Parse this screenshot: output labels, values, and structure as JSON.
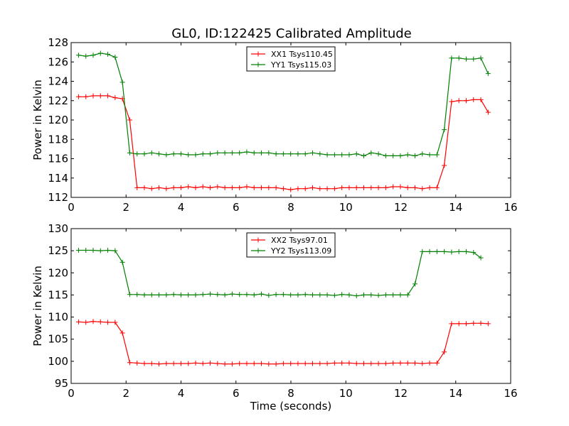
{
  "figure": {
    "title": "GL0, ID:122425 Calibrated Amplitude"
  },
  "chart_data": [
    {
      "type": "line",
      "title": "GL0, ID:122425 Calibrated Amplitude",
      "xlabel": "",
      "ylabel": "Power in Kelvin",
      "xlim": [
        0,
        16
      ],
      "ylim": [
        112,
        128
      ],
      "xticks": [
        0,
        2,
        4,
        6,
        8,
        10,
        12,
        14,
        16
      ],
      "yticks": [
        112,
        114,
        116,
        118,
        120,
        122,
        124,
        126,
        128
      ],
      "grid": false,
      "legend_position": "top-center",
      "x": [
        0.27,
        0.48,
        0.69,
        0.9,
        1.11,
        1.32,
        1.53,
        1.74,
        1.95,
        2.16,
        2.37,
        2.58,
        2.79,
        3.0,
        3.21,
        3.42,
        3.63,
        3.84,
        4.05,
        4.26,
        4.47,
        4.68,
        4.89,
        5.1,
        5.31,
        5.52,
        5.73,
        5.94,
        6.15,
        6.36,
        6.57,
        6.78,
        6.99,
        7.2,
        7.41,
        7.62,
        7.83,
        8.04,
        8.25,
        8.46,
        8.67,
        8.88,
        9.09,
        9.3,
        9.51,
        9.72,
        9.93,
        10.14,
        10.35,
        10.56,
        10.77,
        10.98,
        11.19,
        11.4,
        11.61,
        11.82,
        12.03,
        12.24,
        12.45,
        12.66,
        12.87,
        13.08,
        13.29,
        13.5,
        13.71,
        13.92,
        14.13,
        14.34,
        14.55,
        14.76,
        14.97,
        15.18
      ],
      "series": [
        {
          "name": "XX1 Tsys110.45",
          "color": "#ff0000",
          "values": [
            122.4,
            122.4,
            122.5,
            122.5,
            122.5,
            122.3,
            122.2,
            120.0,
            113.0,
            113.0,
            112.9,
            113.0,
            112.9,
            113.0,
            113.0,
            113.1,
            113.0,
            113.1,
            113.0,
            113.1,
            113.0,
            113.0,
            113.0,
            113.1,
            113.0,
            113.0,
            113.0,
            113.0,
            112.9,
            112.8,
            112.9,
            112.9,
            113.0,
            112.9,
            112.9,
            112.9,
            113.0,
            113.0,
            113.0,
            113.0,
            113.0,
            113.0,
            113.0,
            113.1,
            113.1,
            113.0,
            113.0,
            113.0,
            113.0,
            113.1,
            113.2,
            113.1,
            113.0,
            112.9,
            113.0,
            113.0,
            113.0,
            112.9,
            115.3,
            121.9,
            122.0,
            122.0,
            122.1,
            122.1,
            122.1,
            122.1,
            120.8,
            120.8,
            120.8,
            120.8,
            120.8,
            120.8
          ],
          "note_len": 52
        },
        {
          "name": "YY1 Tsys115.03",
          "color": "#008000",
          "values": [
            126.7,
            126.6,
            126.7,
            126.9,
            126.8,
            126.5,
            123.9,
            116.6,
            116.5,
            116.5,
            116.6,
            116.5,
            116.4,
            116.5,
            116.5,
            116.4,
            116.4,
            116.5,
            116.5,
            116.6,
            116.6,
            116.6,
            116.6,
            116.7,
            116.6,
            116.6,
            116.6,
            116.5,
            116.5,
            116.5,
            116.5,
            116.5,
            116.6,
            116.5,
            116.4,
            116.4,
            116.4,
            116.4,
            116.5,
            116.3,
            116.6,
            116.5,
            116.3,
            116.3,
            116.3,
            116.4,
            116.3,
            116.3,
            116.5,
            116.4,
            116.4,
            116.4,
            119.0,
            126.4,
            126.4,
            126.3,
            126.3,
            126.4,
            126.4,
            124.8,
            124.8,
            124.8,
            124.8,
            124.8,
            124.8,
            124.8,
            124.8,
            124.8,
            124.8,
            124.8,
            124.8,
            124.8
          ],
          "note_len": 52
        }
      ]
    },
    {
      "type": "line",
      "title": "",
      "xlabel": "Time (seconds)",
      "ylabel": "Power in Kelvin",
      "xlim": [
        0,
        16
      ],
      "ylim": [
        95,
        130
      ],
      "xticks": [
        0,
        2,
        4,
        6,
        8,
        10,
        12,
        14,
        16
      ],
      "yticks": [
        95,
        100,
        105,
        110,
        115,
        120,
        125,
        130
      ],
      "grid": false,
      "legend_position": "top-center",
      "series": [
        {
          "name": "XX2 Tsys97.01",
          "color": "#ff0000"
        },
        {
          "name": "YY2 Tsys113.09",
          "color": "#008000"
        }
      ]
    }
  ]
}
